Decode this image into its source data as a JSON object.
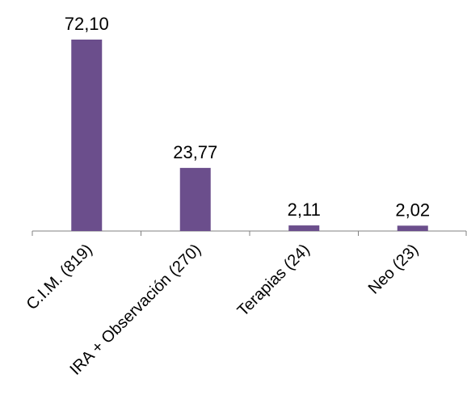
{
  "chart_data": {
    "type": "bar",
    "categories": [
      "C.I.M. (819)",
      "IRA + Observación (270)",
      "Terapias (24)",
      "Neo (23)"
    ],
    "values": [
      72.1,
      23.77,
      2.11,
      2.02
    ],
    "value_labels": [
      "72,10",
      "23,77",
      "2,11",
      "2,02"
    ],
    "title": "",
    "xlabel": "",
    "ylabel": "",
    "ylim": [
      0,
      72.1
    ],
    "grid": false,
    "legend": "none",
    "bar_color": "#6B4E8C",
    "axis_color": "#808080"
  }
}
